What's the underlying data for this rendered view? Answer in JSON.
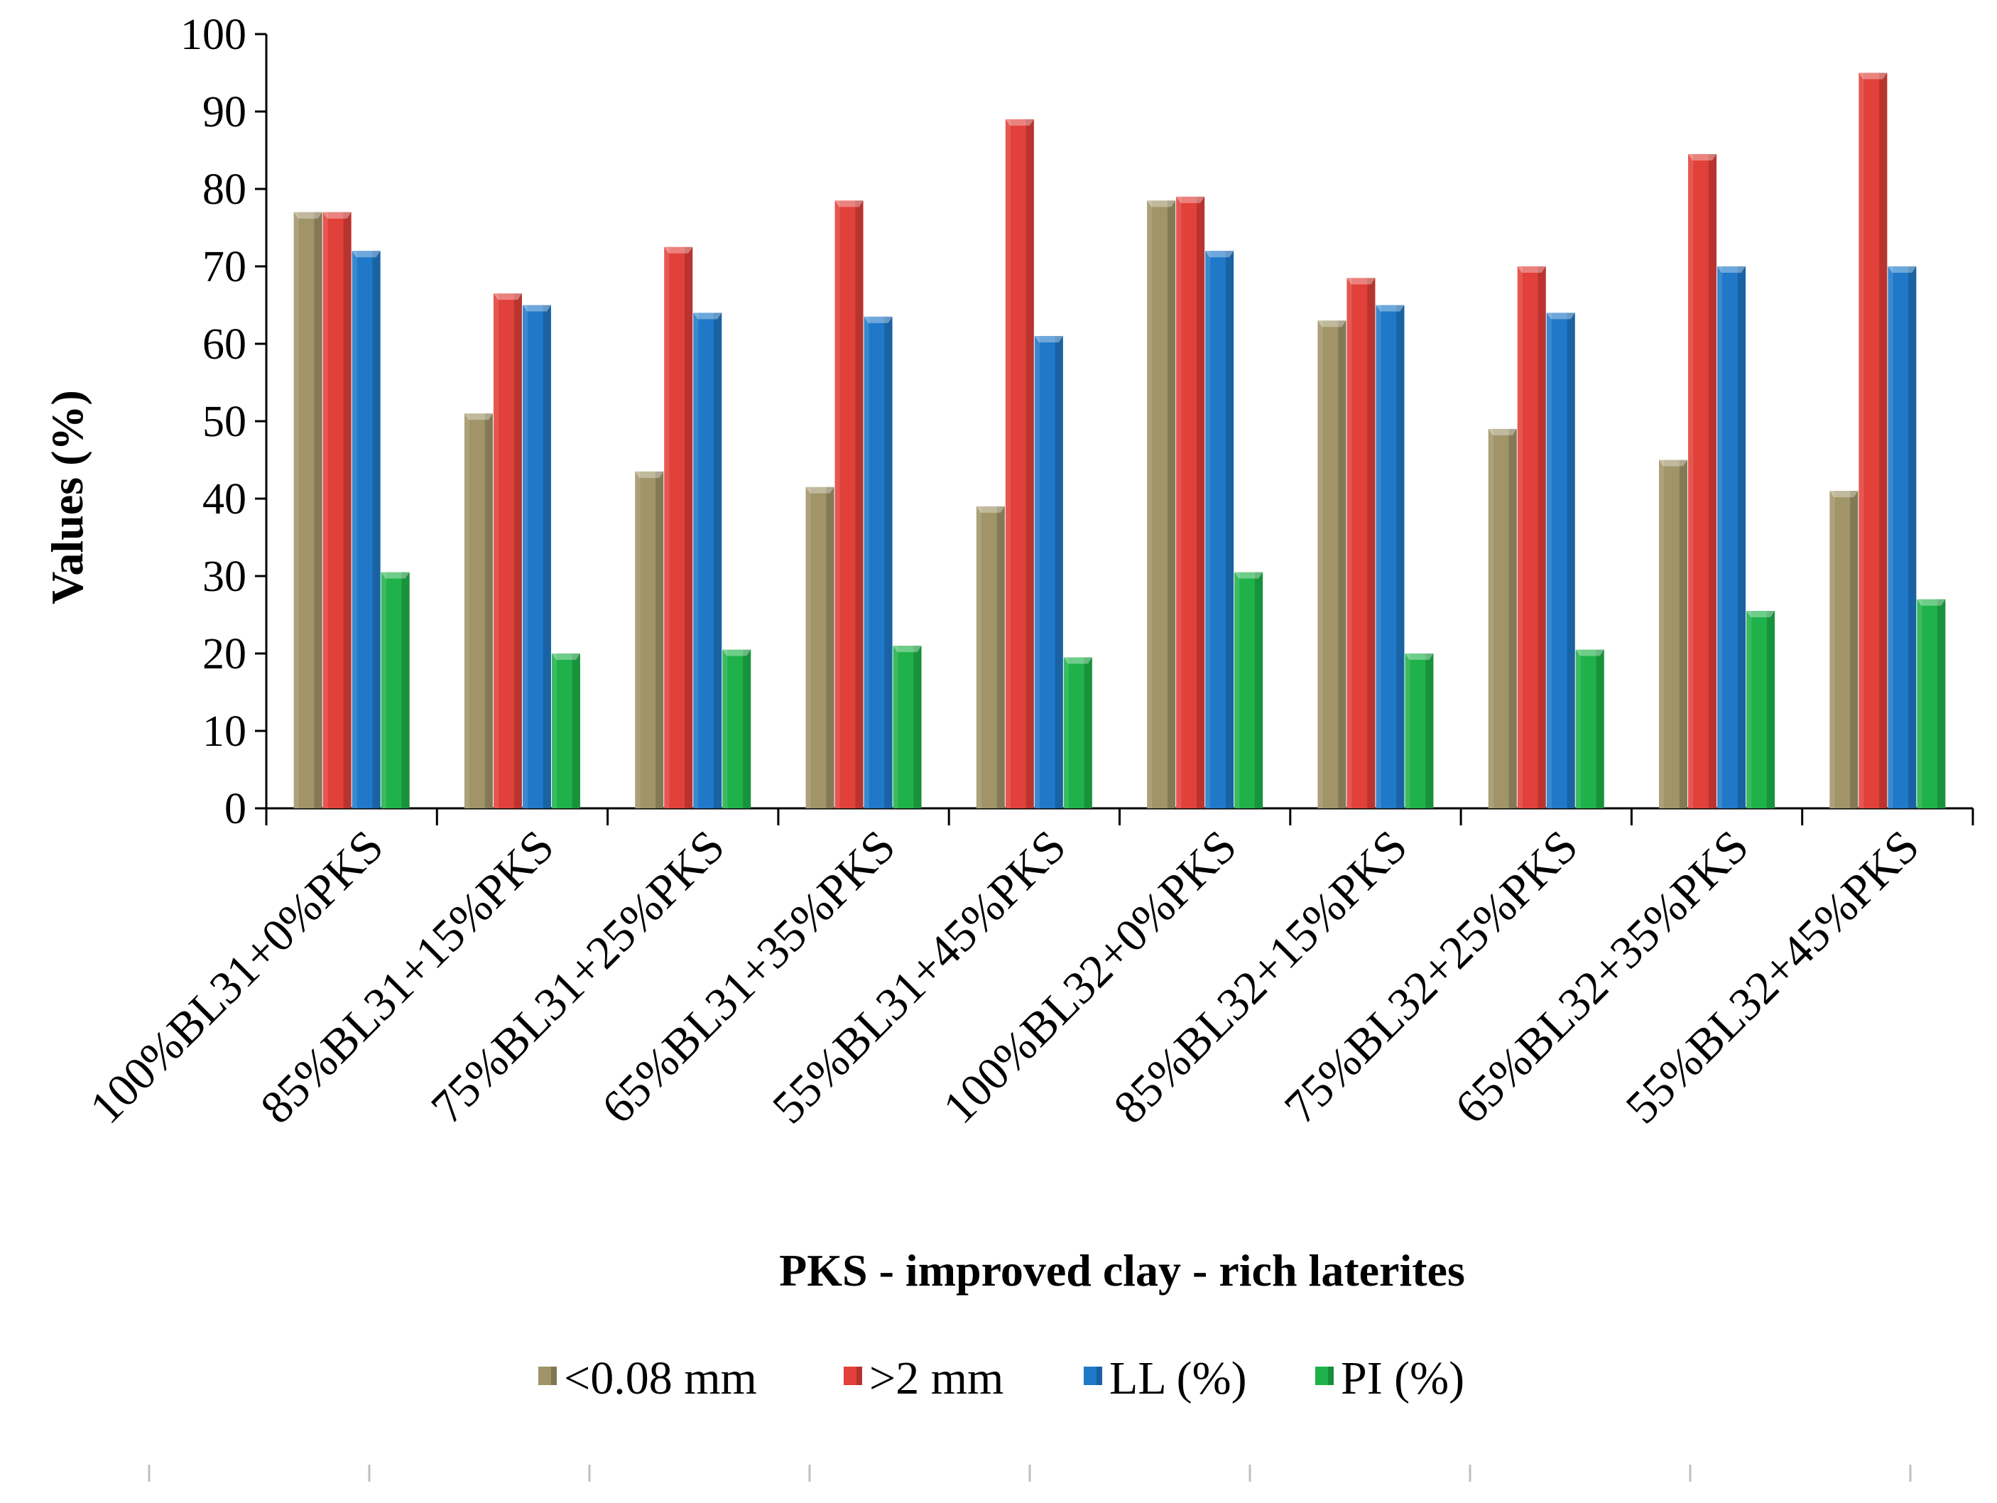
{
  "chart_data": {
    "type": "bar",
    "title": "",
    "xlabel": "PKS - improved clay - rich laterites",
    "ylabel": "Values (%)",
    "ylim": [
      0,
      100
    ],
    "yticks": [
      0,
      10,
      20,
      30,
      40,
      50,
      60,
      70,
      80,
      90,
      100
    ],
    "grid": false,
    "legend_position": "bottom",
    "categories": [
      "100%BL31+0%PKS",
      "85%BL31+15%PKS",
      "75%BL31+25%PKS",
      "65%BL31+35%PKS",
      "55%BL31+45%PKS",
      "100%BL32+0%PKS",
      "85%BL32+15%PKS",
      "75%BL32+25%PKS",
      "65%BL32+35%PKS",
      "55%BL32+45%PKS"
    ],
    "series": [
      {
        "name": "<0.08 mm",
        "color": "#a09468",
        "values": [
          77,
          51,
          43.5,
          41.5,
          39,
          78.5,
          63,
          49,
          45,
          41
        ]
      },
      {
        "name": ">2 mm",
        "color": "#e2403a",
        "values": [
          77,
          66.5,
          72.5,
          78.5,
          89,
          79,
          68.5,
          70,
          84.5,
          95
        ]
      },
      {
        "name": "LL (%)",
        "color": "#1f78c8",
        "values": [
          72,
          65,
          64,
          63.5,
          61,
          72,
          65,
          64,
          70,
          70
        ]
      },
      {
        "name": "PI (%)",
        "color": "#1fb24a",
        "values": [
          30.5,
          20,
          20.5,
          21,
          19.5,
          30.5,
          20,
          20.5,
          25.5,
          27
        ]
      }
    ]
  }
}
